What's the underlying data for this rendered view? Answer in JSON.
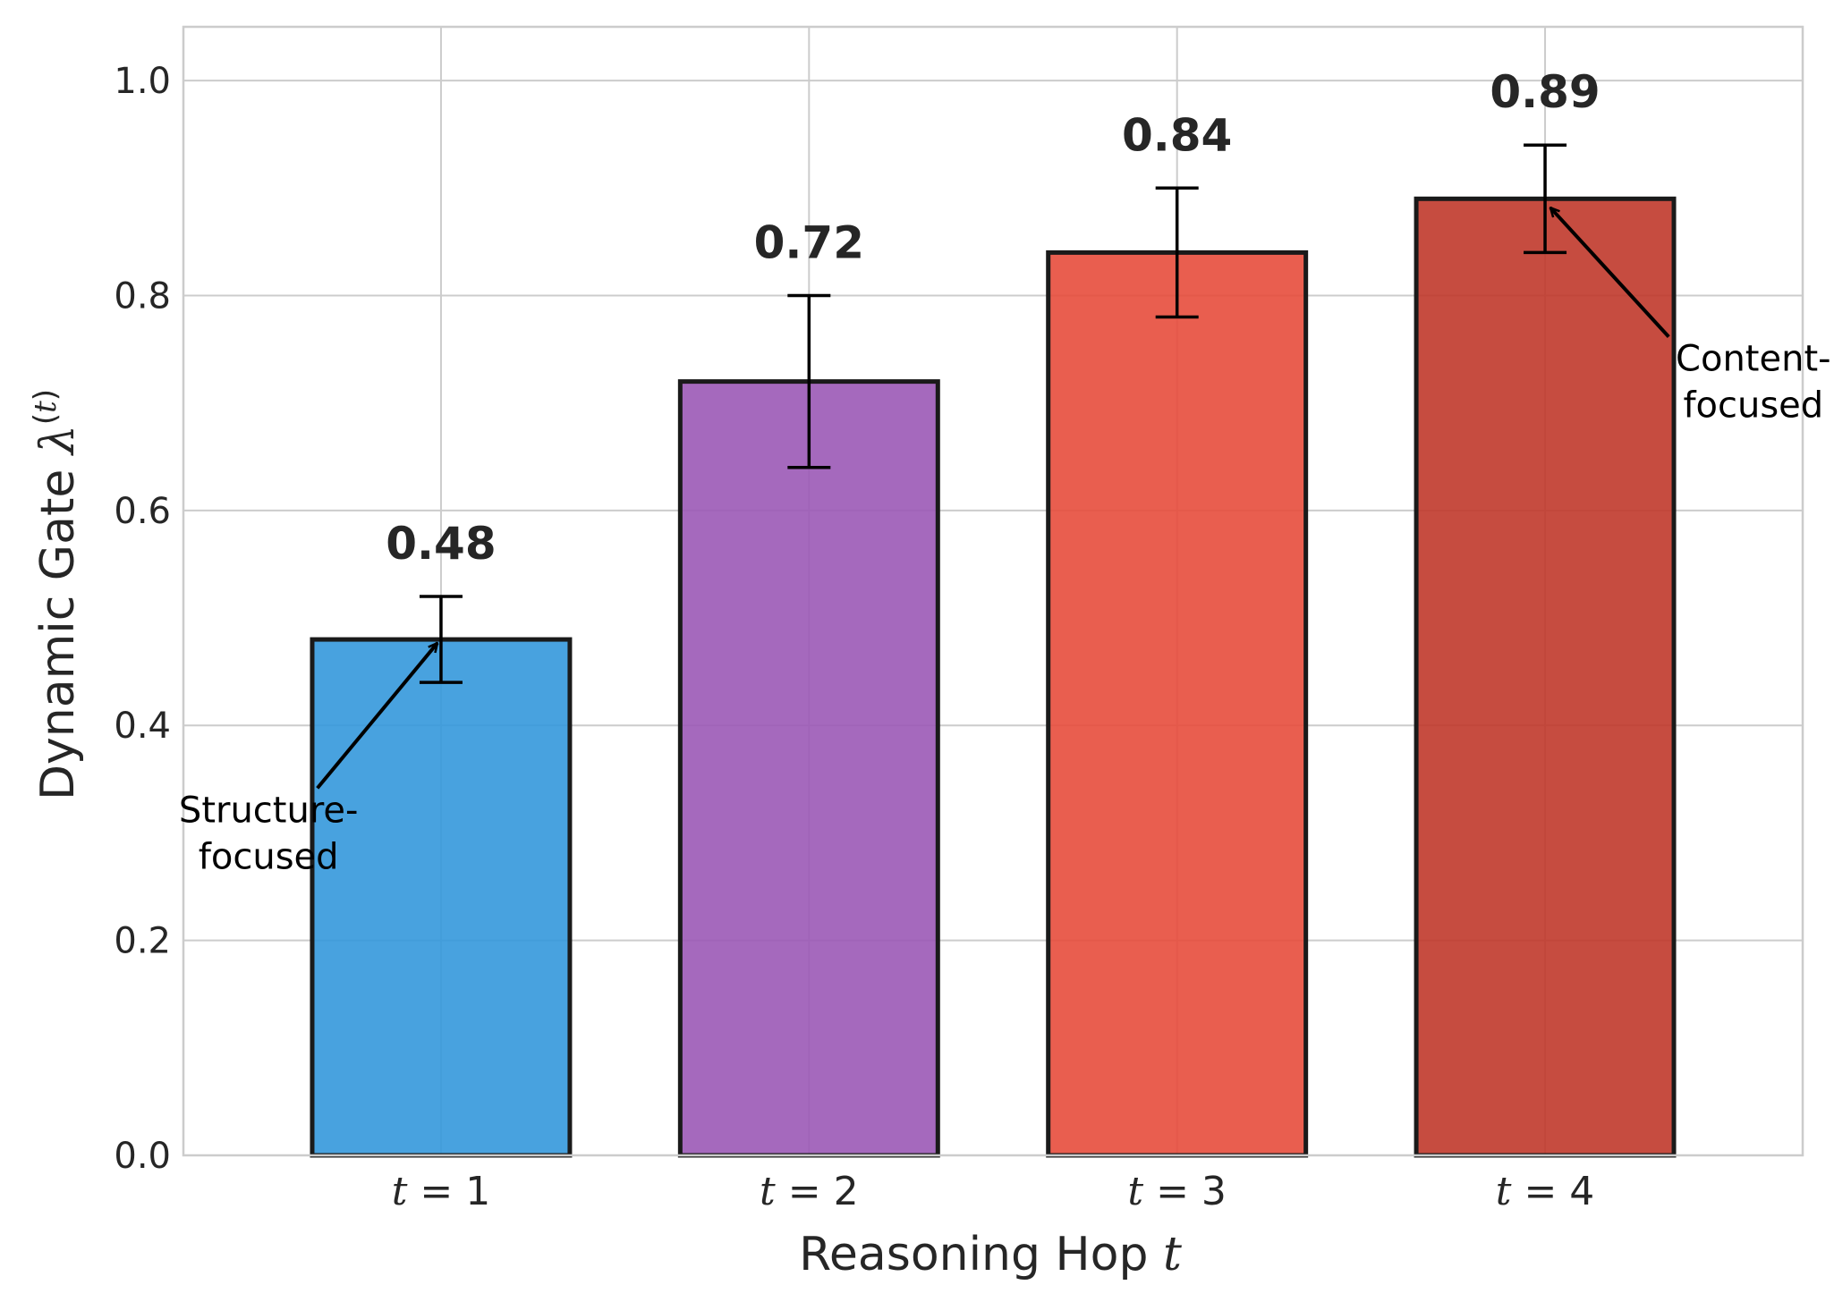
{
  "chart_data": {
    "type": "bar",
    "categories": [
      "t = 1",
      "t = 2",
      "t = 3",
      "t = 4"
    ],
    "values": [
      0.48,
      0.72,
      0.84,
      0.89
    ],
    "errors": [
      0.04,
      0.08,
      0.06,
      0.05
    ],
    "value_labels": [
      "0.48",
      "0.72",
      "0.84",
      "0.89"
    ],
    "colors": [
      "#3498db",
      "#9b59b6",
      "#e74c3c",
      "#c0392b"
    ],
    "edge_color": "#1a1a1a",
    "title": "",
    "xlabel": "Reasoning Hop t",
    "ylabel": "Dynamic Gate λ(t)",
    "ylim": [
      0,
      1.05
    ],
    "yticks": [
      0.0,
      0.2,
      0.4,
      0.6,
      0.8,
      1.0
    ],
    "ytick_labels": [
      "0.0",
      "0.2",
      "0.4",
      "0.6",
      "0.8",
      "1.0"
    ],
    "grid": true,
    "legend": "none",
    "annotations": [
      {
        "lines": [
          "Structure-",
          "focused"
        ],
        "points_to_category": 0,
        "points_to_value": 0.48,
        "text_value": 0.31
      },
      {
        "lines": [
          "Content-",
          "focused"
        ],
        "points_to_category": 3,
        "points_to_value": 0.89,
        "text_value": 0.73
      }
    ]
  }
}
